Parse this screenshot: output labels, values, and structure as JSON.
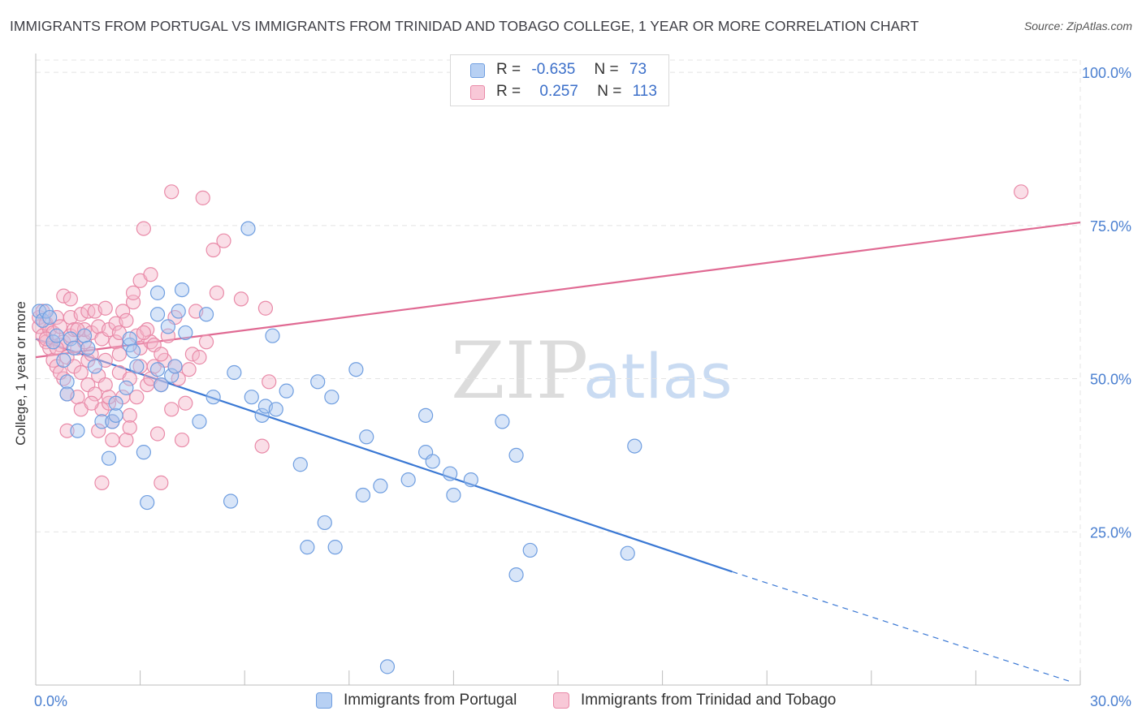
{
  "title": "IMMIGRANTS FROM PORTUGAL VS IMMIGRANTS FROM TRINIDAD AND TOBAGO COLLEGE, 1 YEAR OR MORE CORRELATION CHART",
  "source": "Source: ZipAtlas.com",
  "watermark": {
    "zip": "ZIP",
    "atlas": "atlas"
  },
  "legend_top": {
    "rows": [
      {
        "r_label": "R =",
        "r_value": "-0.635",
        "n_label": "N =",
        "n_value": "73"
      },
      {
        "r_label": "R =",
        "r_value": "0.257",
        "n_label": "N =",
        "n_value": "113"
      }
    ]
  },
  "legend_bottom": {
    "items": [
      {
        "label": "Immigrants from Portugal"
      },
      {
        "label": "Immigrants from Trinidad and Tobago"
      }
    ]
  },
  "colors": {
    "blue_fill": "#a9c6f0",
    "blue_stroke": "#6f9ee0",
    "blue_line": "#3a78d4",
    "pink_fill": "#f5b6c9",
    "pink_stroke": "#e98aa8",
    "pink_line": "#e06a93",
    "tick_label": "#4a7fd0",
    "grid": "#e4e4e4"
  },
  "chart_data": {
    "type": "scatter",
    "title": "IMMIGRANTS FROM PORTUGAL VS IMMIGRANTS FROM TRINIDAD AND TOBAGO COLLEGE, 1 YEAR OR MORE CORRELATION CHART",
    "xlabel": "",
    "ylabel": "College, 1 year or more",
    "xlim": [
      0,
      30
    ],
    "ylim": [
      0,
      102
    ],
    "x_tick_labels": [
      {
        "value": 0,
        "label": "0.0%"
      },
      {
        "value": 30,
        "label": "30.0%"
      }
    ],
    "x_minor_ticks": [
      0,
      3,
      6,
      9,
      12,
      15,
      18,
      21,
      24,
      27,
      30
    ],
    "y_ticks": [
      {
        "value": 25,
        "label": "25.0%"
      },
      {
        "value": 50,
        "label": "50.0%"
      },
      {
        "value": 75,
        "label": "75.0%"
      },
      {
        "value": 100,
        "label": "100.0%"
      }
    ],
    "grid": true,
    "legend_position": "bottom",
    "series": [
      {
        "name": "Immigrants from Portugal",
        "color": "#6f9ee0",
        "trend": {
          "x0": 0,
          "y0": 56.5,
          "x1": 20.0,
          "y1": 18.5,
          "dashed_to_x": 29.7,
          "dashed_to_y": 0.6
        },
        "points": [
          [
            0.1,
            61
          ],
          [
            0.2,
            59.5
          ],
          [
            0.3,
            61
          ],
          [
            0.4,
            60
          ],
          [
            0.5,
            56
          ],
          [
            0.6,
            57
          ],
          [
            0.8,
            53
          ],
          [
            0.9,
            49.5
          ],
          [
            0.9,
            47.5
          ],
          [
            1.0,
            56.5
          ],
          [
            1.1,
            55
          ],
          [
            1.2,
            41.5
          ],
          [
            1.4,
            57
          ],
          [
            1.5,
            55
          ],
          [
            1.7,
            52
          ],
          [
            1.9,
            43
          ],
          [
            2.1,
            37
          ],
          [
            2.2,
            43
          ],
          [
            2.3,
            44
          ],
          [
            2.3,
            46
          ],
          [
            2.6,
            48.5
          ],
          [
            2.7,
            55.5
          ],
          [
            2.7,
            56.5
          ],
          [
            2.8,
            54.5
          ],
          [
            2.9,
            52
          ],
          [
            3.1,
            38
          ],
          [
            3.2,
            29.8
          ],
          [
            3.5,
            60.5
          ],
          [
            3.5,
            51.5
          ],
          [
            3.5,
            64
          ],
          [
            3.6,
            49
          ],
          [
            3.8,
            58.5
          ],
          [
            3.9,
            50.5
          ],
          [
            4.0,
            52
          ],
          [
            4.1,
            61
          ],
          [
            4.2,
            64.5
          ],
          [
            4.3,
            57.5
          ],
          [
            4.7,
            43
          ],
          [
            4.9,
            60.5
          ],
          [
            5.1,
            47
          ],
          [
            5.6,
            30
          ],
          [
            5.7,
            51
          ],
          [
            6.2,
            47
          ],
          [
            6.5,
            44
          ],
          [
            6.6,
            45.5
          ],
          [
            6.9,
            45
          ],
          [
            6.8,
            57
          ],
          [
            7.2,
            48
          ],
          [
            7.6,
            36
          ],
          [
            8.1,
            49.5
          ],
          [
            8.3,
            26.5
          ],
          [
            8.6,
            22.5
          ],
          [
            8.5,
            47
          ],
          [
            9.2,
            51.5
          ],
          [
            9.4,
            31
          ],
          [
            9.5,
            40.5
          ],
          [
            9.9,
            32.5
          ],
          [
            10.1,
            3
          ],
          [
            10.7,
            33.5
          ],
          [
            11.2,
            44
          ],
          [
            11.2,
            38
          ],
          [
            11.4,
            36.5
          ],
          [
            11.9,
            34.5
          ],
          [
            12.0,
            31
          ],
          [
            12.5,
            33.5
          ],
          [
            13.4,
            43
          ],
          [
            13.8,
            37.5
          ],
          [
            13.8,
            18
          ],
          [
            14.2,
            22
          ],
          [
            17.0,
            21.5
          ],
          [
            17.2,
            39
          ],
          [
            7.8,
            22.5
          ],
          [
            6.1,
            74.5
          ]
        ]
      },
      {
        "name": "Immigrants from Trinidad and Tobago",
        "color": "#e98aa8",
        "trend": {
          "x0": 0,
          "y0": 53.5,
          "x1": 30.0,
          "y1": 75.5
        },
        "points": [
          [
            0.1,
            58.5
          ],
          [
            0.1,
            60
          ],
          [
            0.2,
            61
          ],
          [
            0.2,
            57
          ],
          [
            0.3,
            59
          ],
          [
            0.3,
            56
          ],
          [
            0.4,
            58
          ],
          [
            0.4,
            55
          ],
          [
            0.5,
            57.5
          ],
          [
            0.5,
            53
          ],
          [
            0.6,
            52
          ],
          [
            0.6,
            60
          ],
          [
            0.7,
            55.5
          ],
          [
            0.7,
            58.5
          ],
          [
            0.8,
            56
          ],
          [
            0.8,
            63.5
          ],
          [
            0.8,
            50
          ],
          [
            0.9,
            53.5
          ],
          [
            0.9,
            47.5
          ],
          [
            1.0,
            60
          ],
          [
            1.0,
            57
          ],
          [
            1.1,
            52
          ],
          [
            1.1,
            58
          ],
          [
            1.2,
            55
          ],
          [
            1.2,
            47
          ],
          [
            1.3,
            60.5
          ],
          [
            1.3,
            51
          ],
          [
            1.3,
            45
          ],
          [
            1.4,
            56
          ],
          [
            1.4,
            58
          ],
          [
            1.5,
            53
          ],
          [
            1.5,
            49
          ],
          [
            1.5,
            61
          ],
          [
            1.6,
            54
          ],
          [
            1.6,
            57.5
          ],
          [
            1.7,
            61
          ],
          [
            1.7,
            47.5
          ],
          [
            1.8,
            50.5
          ],
          [
            1.8,
            58.5
          ],
          [
            1.9,
            56.5
          ],
          [
            1.9,
            33
          ],
          [
            1.9,
            45
          ],
          [
            2.0,
            61.5
          ],
          [
            2.0,
            53
          ],
          [
            2.0,
            49
          ],
          [
            2.1,
            58
          ],
          [
            2.1,
            46
          ],
          [
            2.2,
            43
          ],
          [
            2.2,
            40
          ],
          [
            2.3,
            56
          ],
          [
            2.3,
            59
          ],
          [
            2.4,
            54
          ],
          [
            2.4,
            51
          ],
          [
            2.5,
            61
          ],
          [
            2.5,
            47
          ],
          [
            2.6,
            40
          ],
          [
            2.6,
            59.5
          ],
          [
            2.7,
            44
          ],
          [
            2.7,
            50
          ],
          [
            2.8,
            62.5
          ],
          [
            2.8,
            64
          ],
          [
            2.9,
            57
          ],
          [
            2.9,
            47
          ],
          [
            3.0,
            55
          ],
          [
            3.0,
            52
          ],
          [
            3.0,
            66
          ],
          [
            3.1,
            74.5
          ],
          [
            3.2,
            58
          ],
          [
            3.2,
            49
          ],
          [
            3.3,
            56
          ],
          [
            3.3,
            67
          ],
          [
            3.3,
            50
          ],
          [
            3.4,
            55.5
          ],
          [
            3.4,
            52
          ],
          [
            3.5,
            41
          ],
          [
            3.6,
            33
          ],
          [
            3.6,
            49
          ],
          [
            3.7,
            53
          ],
          [
            3.8,
            57
          ],
          [
            3.9,
            80.5
          ],
          [
            3.9,
            45
          ],
          [
            4.0,
            60
          ],
          [
            4.0,
            52
          ],
          [
            4.1,
            50
          ],
          [
            4.2,
            40
          ],
          [
            4.3,
            46
          ],
          [
            4.4,
            51.5
          ],
          [
            4.5,
            54
          ],
          [
            4.6,
            61
          ],
          [
            4.8,
            79.5
          ],
          [
            4.9,
            56
          ],
          [
            5.1,
            71
          ],
          [
            5.2,
            64
          ],
          [
            5.4,
            72.5
          ],
          [
            5.9,
            63
          ],
          [
            6.5,
            39
          ],
          [
            6.6,
            61.5
          ],
          [
            6.7,
            49.5
          ],
          [
            1.2,
            58
          ],
          [
            0.6,
            55
          ],
          [
            1.6,
            46
          ],
          [
            2.4,
            57.5
          ],
          [
            3.1,
            57.5
          ],
          [
            0.3,
            56.5
          ],
          [
            1.0,
            63
          ],
          [
            2.1,
            47
          ],
          [
            0.9,
            41.5
          ],
          [
            3.6,
            54
          ],
          [
            2.7,
            42
          ],
          [
            0.7,
            51
          ],
          [
            28.3,
            80.5
          ],
          [
            1.8,
            41.5
          ],
          [
            4.7,
            53.5
          ]
        ]
      }
    ]
  }
}
